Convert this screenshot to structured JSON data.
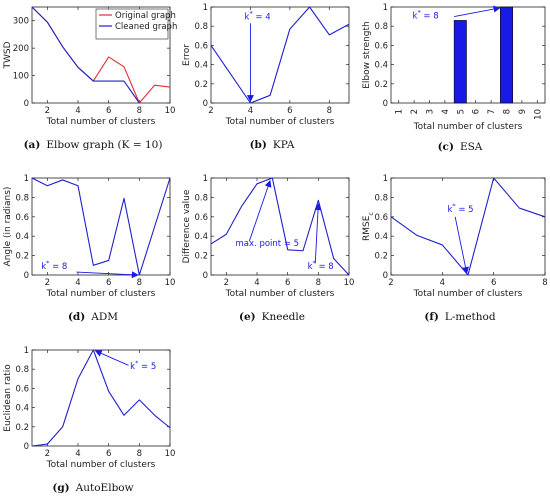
{
  "chart_data": [
    {
      "id": "a",
      "type": "line",
      "caption_label": "(a)",
      "caption_text": "Elbow graph (K = 10)",
      "xlabel": "Total number of clusters",
      "ylabel": "TWSD",
      "xlim": [
        1,
        10
      ],
      "ylim": [
        0,
        350
      ],
      "xticks": [
        2,
        4,
        6,
        8,
        10
      ],
      "yticks": [
        0,
        100,
        200,
        300
      ],
      "series": [
        {
          "name": "Original graph",
          "color": "#e03030",
          "x": [
            1,
            2,
            3,
            4,
            5,
            6,
            7,
            8,
            9,
            10
          ],
          "y": [
            350,
            295,
            205,
            130,
            80,
            168,
            132,
            0,
            65,
            58
          ]
        },
        {
          "name": "Cleaned graph",
          "color": "#2020d0",
          "x": [
            1,
            2,
            3,
            4,
            5,
            6,
            7,
            8
          ],
          "y": [
            350,
            295,
            205,
            130,
            80,
            80,
            80,
            0
          ]
        }
      ],
      "legend": "top-right",
      "annotations": []
    },
    {
      "id": "b",
      "type": "line",
      "caption_label": "(b)",
      "caption_text": "KPA",
      "xlabel": "Total number of clusters",
      "ylabel": "Error",
      "xlim": [
        2,
        9
      ],
      "ylim": [
        0,
        1
      ],
      "xticks": [
        2,
        4,
        6,
        8
      ],
      "yticks": [
        0,
        0.2,
        0.4,
        0.6,
        0.8,
        1
      ],
      "series": [
        {
          "name": "",
          "color": "#2020d0",
          "x": [
            2,
            3,
            4,
            5,
            6,
            7,
            8,
            9
          ],
          "y": [
            0.6,
            0.3,
            0.0,
            0.08,
            0.77,
            1.0,
            0.71,
            0.82
          ]
        }
      ],
      "annotations": [
        {
          "label": "k",
          "sup": "*",
          "rest": " = 4",
          "text_at": [
            3.7,
            0.87
          ],
          "arrow_from": [
            4.0,
            0.83
          ],
          "arrow_to": [
            4.0,
            0.02
          ]
        }
      ]
    },
    {
      "id": "c",
      "type": "bar",
      "caption_label": "(c)",
      "caption_text": "ESA",
      "xlabel": "Total number of clusters",
      "ylabel": "Elbow strength",
      "xlim": [
        0.5,
        10.5
      ],
      "ylim": [
        0,
        1
      ],
      "categories": [
        "1",
        "2",
        "3",
        "4",
        "5",
        "6",
        "7",
        "8",
        "9",
        "10"
      ],
      "values": [
        0,
        0,
        0,
        0,
        0.86,
        0,
        0,
        1.0,
        0,
        0
      ],
      "yticks": [
        0,
        0.2,
        0.4,
        0.6,
        0.8,
        1
      ],
      "bar_color": "#1a1ae6",
      "annotations": [
        {
          "label": "k",
          "sup": "*",
          "rest": " = 8",
          "text_at": [
            1.9,
            0.88
          ],
          "arrow_from": [
            4.6,
            0.9
          ],
          "arrow_to": [
            7.55,
            0.99
          ]
        }
      ]
    },
    {
      "id": "d",
      "type": "line",
      "caption_label": "(d)",
      "caption_text": "ADM",
      "xlabel": "Total number of clusters",
      "ylabel": "Angle (in radians)",
      "xlim": [
        1,
        10
      ],
      "ylim": [
        0,
        1
      ],
      "xticks": [
        2,
        4,
        6,
        8,
        10
      ],
      "yticks": [
        0,
        0.2,
        0.4,
        0.6,
        0.8,
        1
      ],
      "series": [
        {
          "name": "",
          "color": "#2020d0",
          "x": [
            1,
            2,
            3,
            4,
            5,
            6,
            7,
            8,
            9,
            10
          ],
          "y": [
            1.0,
            0.92,
            0.98,
            0.92,
            0.1,
            0.15,
            0.79,
            0.0,
            0.5,
            1.0
          ]
        }
      ],
      "annotations": [
        {
          "label": "k",
          "sup": "*",
          "rest": " = 8",
          "text_at": [
            1.6,
            0.06
          ],
          "arrow_from": [
            3.9,
            0.03
          ],
          "arrow_to": [
            7.9,
            0.0
          ]
        }
      ]
    },
    {
      "id": "e",
      "type": "line",
      "caption_label": "(e)",
      "caption_text": "Kneedle",
      "xlabel": "Total number of clusters",
      "ylabel": "Difference value",
      "xlim": [
        1,
        10
      ],
      "ylim": [
        0,
        1
      ],
      "xticks": [
        2,
        4,
        6,
        8,
        10
      ],
      "yticks": [
        0,
        0.2,
        0.4,
        0.6,
        0.8,
        1
      ],
      "series": [
        {
          "name": "",
          "color": "#2020d0",
          "x": [
            1,
            2,
            3,
            4,
            5,
            6,
            7,
            8,
            9,
            10
          ],
          "y": [
            0.32,
            0.42,
            0.71,
            0.94,
            1.0,
            0.26,
            0.25,
            0.77,
            0.17,
            0.0
          ]
        }
      ],
      "annotations": [
        {
          "label": "max. point = 5",
          "sup": "",
          "rest": "",
          "text_at": [
            2.6,
            0.3
          ],
          "arrow_from": [
            3.5,
            0.35
          ],
          "arrow_to": [
            4.85,
            0.97
          ]
        },
        {
          "label": "k",
          "sup": "*",
          "rest": " = 8",
          "text_at": [
            7.3,
            0.06
          ],
          "arrow_from": [
            7.8,
            0.12
          ],
          "arrow_to": [
            8.0,
            0.73
          ]
        }
      ]
    },
    {
      "id": "f",
      "type": "line",
      "caption_label": "(f)",
      "caption_text": "L-method",
      "xlabel": "Total number of clusters",
      "ylabel": "RMSE",
      "ylabel_sub": "c",
      "xlim": [
        2,
        8
      ],
      "ylim": [
        0,
        1
      ],
      "xticks": [
        2,
        4,
        6,
        8
      ],
      "yticks": [
        0,
        0.2,
        0.4,
        0.6,
        0.8,
        1
      ],
      "series": [
        {
          "name": "",
          "color": "#2020d0",
          "x": [
            2,
            3,
            4,
            5,
            6,
            7,
            8
          ],
          "y": [
            0.6,
            0.41,
            0.31,
            0.0,
            1.0,
            0.69,
            0.6
          ]
        }
      ],
      "annotations": [
        {
          "label": "k",
          "sup": "*",
          "rest": " = 5",
          "text_at": [
            4.2,
            0.65
          ],
          "arrow_from": [
            4.5,
            0.6
          ],
          "arrow_to": [
            4.95,
            0.02
          ]
        }
      ]
    },
    {
      "id": "g",
      "type": "line",
      "caption_label": "(g)",
      "caption_text": "AutoElbow",
      "xlabel": "Total number of clusters",
      "ylabel": "Euclidean ratio",
      "xlim": [
        1,
        10
      ],
      "ylim": [
        0,
        1
      ],
      "xticks": [
        2,
        4,
        6,
        8,
        10
      ],
      "yticks": [
        0,
        0.2,
        0.4,
        0.6,
        0.8,
        1
      ],
      "series": [
        {
          "name": "",
          "color": "#2020d0",
          "x": [
            1,
            2,
            3,
            4,
            5,
            6,
            7,
            8,
            9,
            10
          ],
          "y": [
            0.0,
            0.02,
            0.2,
            0.7,
            1.0,
            0.57,
            0.32,
            0.48,
            0.32,
            0.19
          ]
        }
      ],
      "annotations": [
        {
          "label": "k",
          "sup": "*",
          "rest": " = 5",
          "text_at": [
            7.4,
            0.8
          ],
          "arrow_from": [
            7.3,
            0.84
          ],
          "arrow_to": [
            5.15,
            0.99
          ]
        }
      ]
    }
  ]
}
